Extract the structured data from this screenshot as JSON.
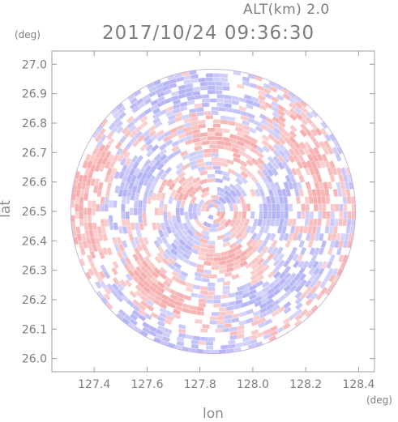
{
  "header": {
    "alt_label": "ALT(km) 2.0",
    "timestamp": "2017/10/24 09:36:30"
  },
  "axes": {
    "y_unit": "(deg)",
    "x_unit": "(deg)"
  },
  "chart_data": {
    "type": "heatmap",
    "title": "2017/10/24 09:36:30",
    "subtitle": "ALT(km) 2.0",
    "xlabel": "lon",
    "ylabel": "lat",
    "xlim": [
      127.24,
      128.46
    ],
    "ylim": [
      25.955,
      27.045
    ],
    "x_ticks": [
      "127.4",
      "127.6",
      "127.8",
      "128.0",
      "128.2",
      "128.4"
    ],
    "x_tick_values": [
      127.4,
      127.6,
      127.8,
      128.0,
      128.2,
      128.4
    ],
    "y_ticks": [
      "26.0",
      "26.1",
      "26.2",
      "26.3",
      "26.4",
      "26.5",
      "26.6",
      "26.7",
      "26.8",
      "26.9",
      "27.0"
    ],
    "y_tick_values": [
      26.0,
      26.1,
      26.2,
      26.3,
      26.4,
      26.5,
      26.6,
      26.7,
      26.8,
      26.9,
      27.0
    ],
    "center": {
      "lon": 127.85,
      "lat": 26.5
    },
    "radius_deg": 0.54,
    "colors": {
      "positive": "#f5a0a0",
      "negative": "#a8a8f5",
      "neutral": "#ffffff",
      "axis": "#9a9a9a"
    },
    "grid": false,
    "legend": "none"
  }
}
